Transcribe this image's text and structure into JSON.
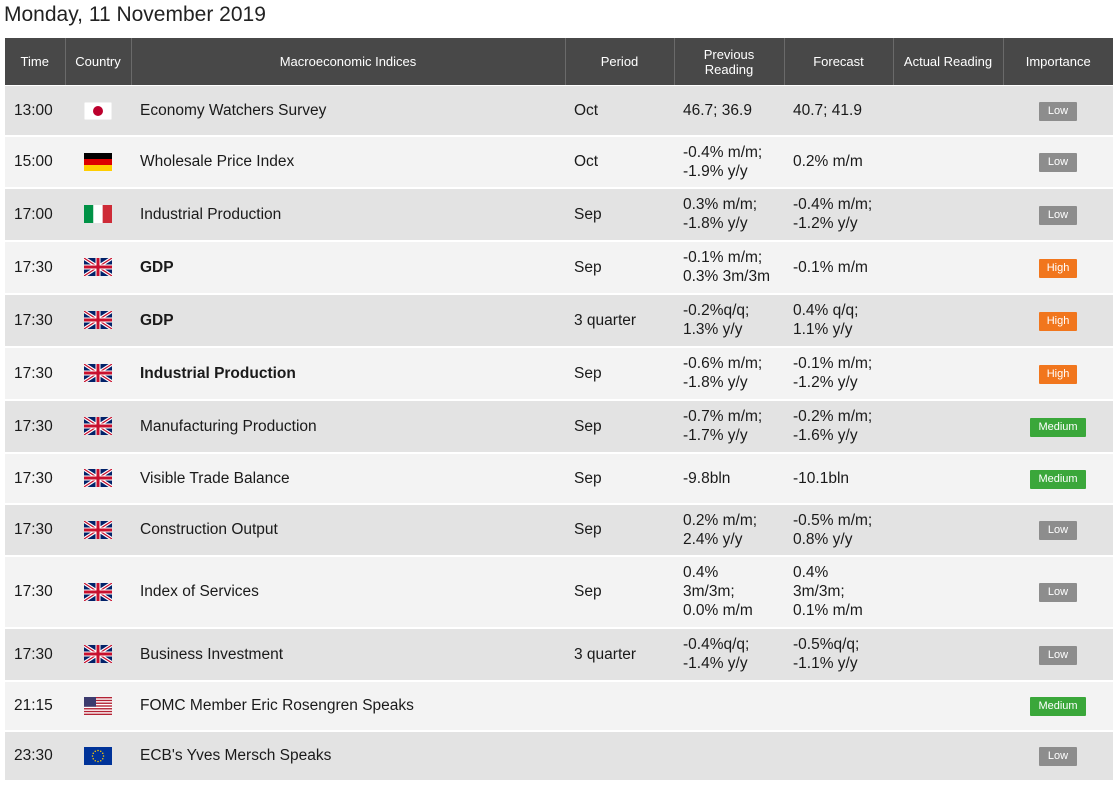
{
  "title": "Monday, 11 November 2019",
  "columns": [
    "Time",
    "Country",
    "Macroeconomic Indices",
    "Period",
    "Previous Reading",
    "Forecast",
    "Actual Reading",
    "Importance"
  ],
  "colors": {
    "header_bg": "#484848",
    "row_dark": "#e3e3e3",
    "row_light": "#f3f3f3",
    "low": "#8d8d8d",
    "high": "#f1761d",
    "medium": "#3aa73a"
  },
  "rows": [
    {
      "time": "13:00",
      "country": "japan-flag-icon",
      "event": "Economy Watchers Survey",
      "bold": false,
      "period": "Oct",
      "prev": [
        "46.7; 36.9"
      ],
      "forecast": [
        "40.7; 41.9"
      ],
      "actual": "",
      "importance": "Low"
    },
    {
      "time": "15:00",
      "country": "germany-flag-icon",
      "event": "Wholesale Price Index",
      "bold": false,
      "period": "Oct",
      "prev": [
        "-0.4% m/m;",
        "-1.9% y/y"
      ],
      "forecast": [
        "0.2% m/m"
      ],
      "actual": "",
      "importance": "Low"
    },
    {
      "time": "17:00",
      "country": "italy-flag-icon",
      "event": "Industrial Production",
      "bold": false,
      "period": "Sep",
      "prev": [
        "0.3% m/m;",
        "-1.8% y/y"
      ],
      "forecast": [
        "-0.4% m/m;",
        "-1.2% y/y"
      ],
      "actual": "",
      "importance": "Low"
    },
    {
      "time": "17:30",
      "country": "uk-flag-icon",
      "event": "GDP",
      "bold": true,
      "period": "Sep",
      "prev": [
        "-0.1% m/m;",
        "0.3% 3m/3m"
      ],
      "forecast": [
        "-0.1% m/m"
      ],
      "actual": "",
      "importance": "High"
    },
    {
      "time": "17:30",
      "country": "uk-flag-icon",
      "event": "GDP",
      "bold": true,
      "period": "3 quarter",
      "prev": [
        "-0.2%q/q;",
        "1.3% y/y"
      ],
      "forecast": [
        "0.4% q/q;",
        "1.1% y/y"
      ],
      "actual": "",
      "importance": "High"
    },
    {
      "time": "17:30",
      "country": "uk-flag-icon",
      "event": "Industrial Production",
      "bold": true,
      "period": "Sep",
      "prev": [
        "-0.6% m/m;",
        "-1.8% y/y"
      ],
      "forecast": [
        "-0.1% m/m;",
        "-1.2% y/y"
      ],
      "actual": "",
      "importance": "High"
    },
    {
      "time": "17:30",
      "country": "uk-flag-icon",
      "event": "Manufacturing Production",
      "bold": false,
      "period": "Sep",
      "prev": [
        "-0.7% m/m;",
        "-1.7% y/y"
      ],
      "forecast": [
        "-0.2% m/m;",
        "-1.6% y/y"
      ],
      "actual": "",
      "importance": "Medium"
    },
    {
      "time": "17:30",
      "country": "uk-flag-icon",
      "event": "Visible Trade Balance",
      "bold": false,
      "period": "Sep",
      "prev": [
        "-9.8bln"
      ],
      "forecast": [
        "-10.1bln"
      ],
      "actual": "",
      "importance": "Medium"
    },
    {
      "time": "17:30",
      "country": "uk-flag-icon",
      "event": "Construction Output",
      "bold": false,
      "period": "Sep",
      "prev": [
        "0.2% m/m;",
        "2.4% y/y"
      ],
      "forecast": [
        "-0.5% m/m;",
        "0.8% y/y"
      ],
      "actual": "",
      "importance": "Low"
    },
    {
      "time": "17:30",
      "country": "uk-flag-icon",
      "event": "Index of Services",
      "bold": false,
      "period": "Sep",
      "prev": [
        "0.4%",
        "3m/3m;",
        "0.0% m/m"
      ],
      "forecast": [
        "0.4%",
        "3m/3m;",
        "0.1% m/m"
      ],
      "actual": "",
      "importance": "Low"
    },
    {
      "time": "17:30",
      "country": "uk-flag-icon",
      "event": "Business Investment",
      "bold": false,
      "period": "3 quarter",
      "prev": [
        "-0.4%q/q;",
        "-1.4% y/y"
      ],
      "forecast": [
        "-0.5%q/q;",
        "-1.1% y/y"
      ],
      "actual": "",
      "importance": "Low"
    },
    {
      "time": "21:15",
      "country": "usa-flag-icon",
      "event": "FOMC Member Eric Rosengren Speaks",
      "bold": false,
      "period": "",
      "prev": [],
      "forecast": [],
      "actual": "",
      "importance": "Medium"
    },
    {
      "time": "23:30",
      "country": "eu-flag-icon",
      "event": "ECB's Yves Mersch Speaks",
      "bold": false,
      "period": "",
      "prev": [],
      "forecast": [],
      "actual": "",
      "importance": "Low"
    }
  ]
}
